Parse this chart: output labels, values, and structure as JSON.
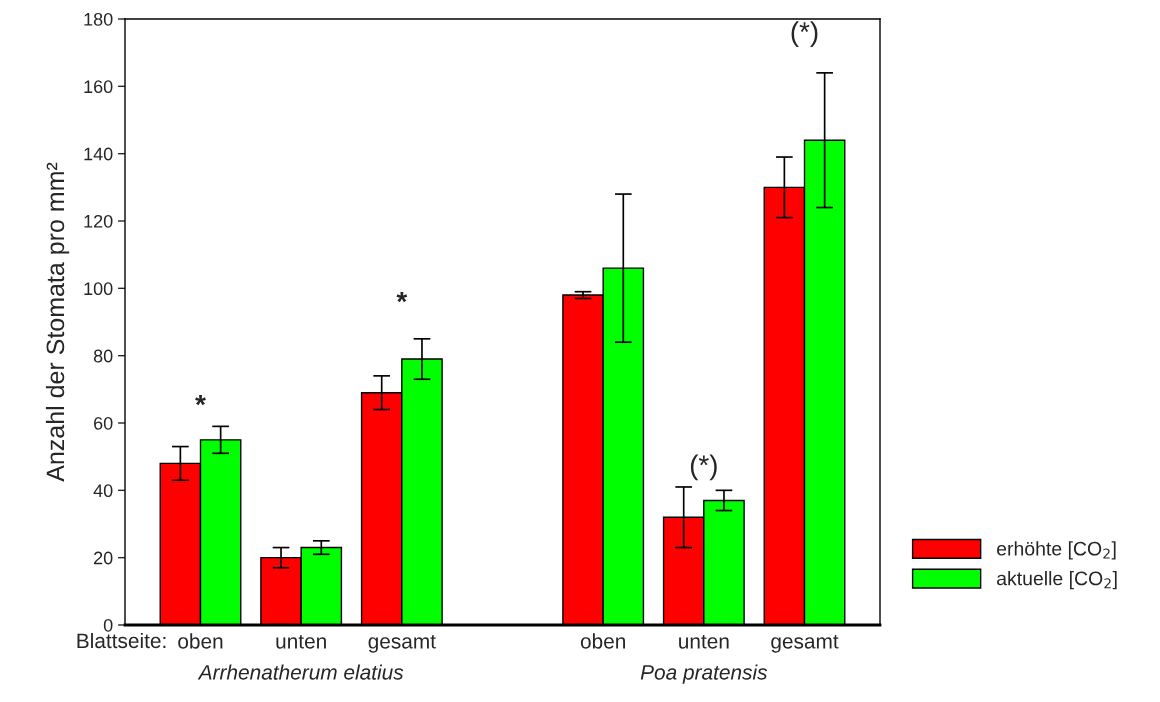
{
  "chart_data": {
    "type": "bar",
    "ylabel": "Anzahl der Stomata pro mm²",
    "categories": [
      "oben",
      "unten",
      "gesamt",
      null,
      "oben",
      "unten",
      "gesamt"
    ],
    "series": [
      {
        "name": "erhöhte [CO$_{2}$]",
        "color": "#ff0000",
        "values": [
          48,
          20,
          69,
          null,
          98,
          32,
          130
        ],
        "errors": [
          5,
          3,
          5,
          null,
          1,
          9,
          9
        ]
      },
      {
        "name": "aktuelle [CO$_{2}$]",
        "color": "#00ff00",
        "values": [
          55,
          23,
          79,
          null,
          106,
          37,
          144
        ],
        "errors": [
          4,
          2,
          6,
          null,
          22,
          3,
          20
        ]
      }
    ],
    "ylim": [
      0,
      180
    ],
    "yticks": [
      0,
      20,
      40,
      60,
      80,
      100,
      120,
      140,
      160,
      180
    ],
    "annotations": [
      "Blattseite:",
      "Arrhenatherum elatius",
      "Poa pratensis",
      "*",
      "*",
      "(*)",
      "(*)"
    ],
    "grid": false,
    "legend": "bottom right"
  }
}
